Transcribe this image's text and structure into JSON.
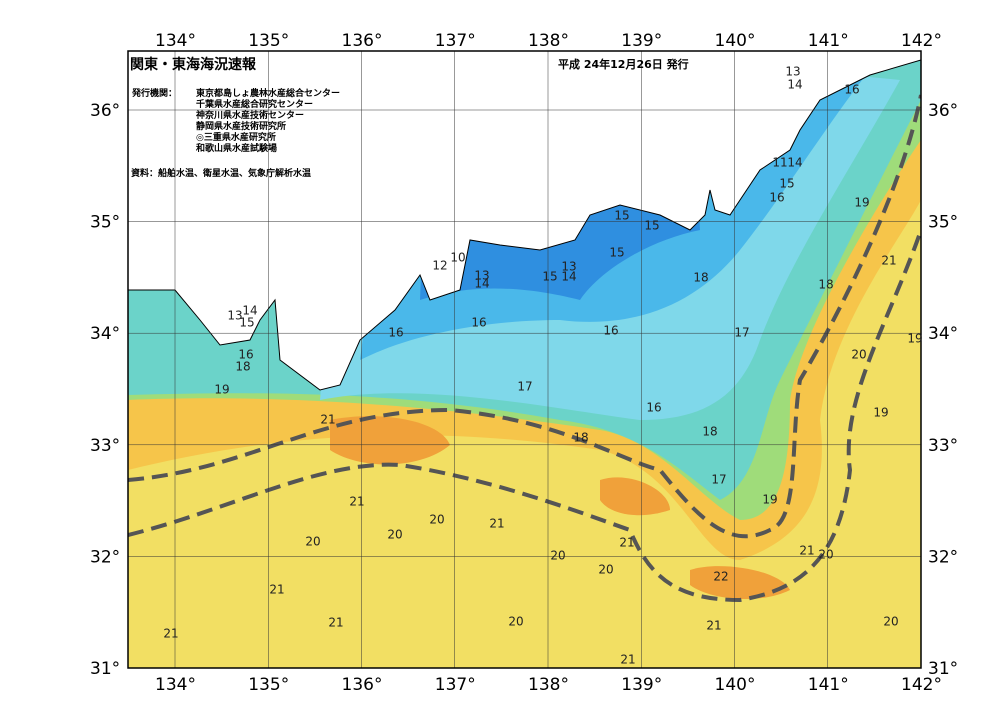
{
  "header": {
    "title": "関東・東海海況速報",
    "date": "平成 24年12月26日 発行",
    "issuer_label": "発行機関：",
    "issuers": [
      "東京都島しょ農林水産総合センター",
      "千葉県水産総合研究センター",
      "神奈川県水産技術センター",
      "静岡県水産技術研究所",
      "◎三重県水産研究所",
      "和歌山県水産試験場"
    ],
    "source": "資料：船舶水温、衛星水温、気象庁解析水温"
  },
  "axes": {
    "lon_ticks": [
      "134°",
      "135°",
      "136°",
      "137°",
      "138°",
      "139°",
      "140°",
      "141°",
      "142°"
    ],
    "lat_ticks": [
      "36°",
      "35°",
      "34°",
      "33°",
      "32°",
      "31°"
    ]
  },
  "contours": {
    "values": [
      13,
      14,
      16,
      11,
      14,
      15,
      16,
      19,
      15,
      15,
      15,
      12,
      10,
      13,
      14,
      15,
      13,
      14,
      18,
      18,
      21,
      14,
      13,
      15,
      16,
      16,
      16,
      17,
      19,
      16,
      18,
      20,
      19,
      17,
      16,
      19,
      21,
      18,
      18,
      17,
      19,
      21,
      20,
      21,
      20,
      21,
      20,
      21,
      20,
      20,
      20,
      22,
      21,
      21,
      20,
      21,
      20,
      21,
      21
    ]
  }
}
